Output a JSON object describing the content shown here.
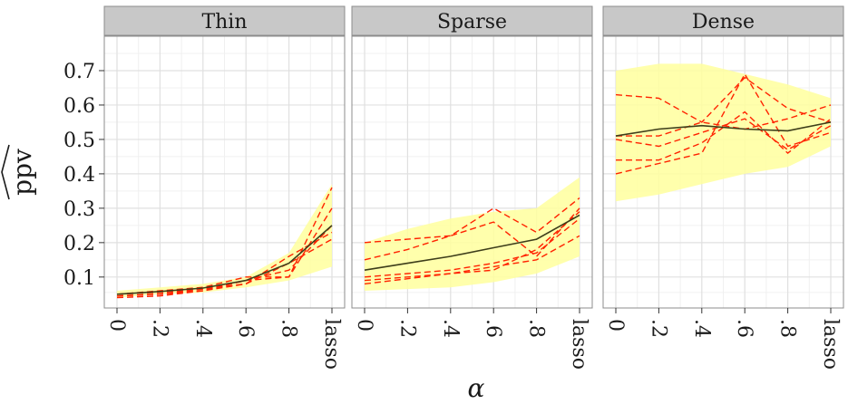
{
  "chart_data": {
    "type": "line",
    "panels": [
      "Thin",
      "Sparse",
      "Dense"
    ],
    "x": [
      "0",
      ".2",
      ".4",
      ".6",
      ".8",
      "lasso"
    ],
    "xlabel": "α",
    "ylabel": "ppv",
    "ylabel_hat": true,
    "ylim": [
      0.01,
      0.8
    ],
    "yticks": [
      0.1,
      0.2,
      0.3,
      0.4,
      0.5,
      0.6,
      0.7
    ],
    "ytick_labels": [
      "0.1",
      "0.2",
      "0.3",
      "0.4",
      "0.5",
      "0.6",
      "0.7"
    ],
    "grid": true,
    "colors": {
      "band": "#ffff9e",
      "mean": "#3d3d1a",
      "runs": "#ff2200",
      "strip": "#c8c8c8",
      "grid_major": "#e0e0e0",
      "grid_minor": "#f0f0f0",
      "frame": "#8c8c8c"
    },
    "data": [
      {
        "panel": "Thin",
        "band_low": [
          0.04,
          0.05,
          0.055,
          0.07,
          0.09,
          0.13
        ],
        "band_high": [
          0.06,
          0.07,
          0.08,
          0.1,
          0.17,
          0.37
        ],
        "mean": [
          0.05,
          0.058,
          0.068,
          0.09,
          0.14,
          0.25
        ],
        "runs": [
          [
            0.045,
            0.05,
            0.06,
            0.09,
            0.1,
            0.36
          ],
          [
            0.05,
            0.055,
            0.065,
            0.09,
            0.12,
            0.25
          ],
          [
            0.04,
            0.045,
            0.06,
            0.08,
            0.16,
            0.23
          ],
          [
            0.05,
            0.06,
            0.07,
            0.1,
            0.1,
            0.3
          ],
          [
            0.045,
            0.05,
            0.065,
            0.08,
            0.14,
            0.21
          ]
        ]
      },
      {
        "panel": "Sparse",
        "band_low": [
          0.06,
          0.065,
          0.07,
          0.085,
          0.11,
          0.16
        ],
        "band_high": [
          0.2,
          0.24,
          0.27,
          0.29,
          0.3,
          0.39
        ],
        "mean": [
          0.12,
          0.14,
          0.16,
          0.185,
          0.21,
          0.28
        ],
        "runs": [
          [
            0.2,
            0.21,
            0.22,
            0.3,
            0.23,
            0.33
          ],
          [
            0.15,
            0.18,
            0.22,
            0.26,
            0.16,
            0.3
          ],
          [
            0.1,
            0.11,
            0.12,
            0.14,
            0.17,
            0.27
          ],
          [
            0.08,
            0.095,
            0.11,
            0.13,
            0.15,
            0.22
          ],
          [
            0.09,
            0.1,
            0.11,
            0.12,
            0.18,
            0.29
          ]
        ]
      },
      {
        "panel": "Dense",
        "band_low": [
          0.32,
          0.34,
          0.37,
          0.4,
          0.42,
          0.48
        ],
        "band_high": [
          0.7,
          0.72,
          0.72,
          0.69,
          0.66,
          0.62
        ],
        "mean": [
          0.51,
          0.53,
          0.54,
          0.53,
          0.525,
          0.55
        ],
        "runs": [
          [
            0.63,
            0.62,
            0.55,
            0.68,
            0.59,
            0.55
          ],
          [
            0.51,
            0.51,
            0.55,
            0.53,
            0.56,
            0.6
          ],
          [
            0.44,
            0.44,
            0.49,
            0.58,
            0.46,
            0.56
          ],
          [
            0.4,
            0.43,
            0.46,
            0.69,
            0.48,
            0.52
          ],
          [
            0.5,
            0.48,
            0.52,
            0.56,
            0.47,
            0.54
          ]
        ]
      }
    ]
  }
}
